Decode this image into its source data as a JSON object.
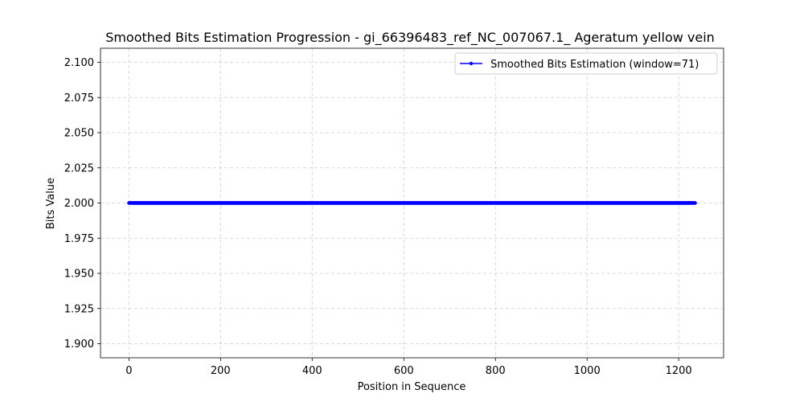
{
  "chart_data": {
    "type": "line",
    "title": "Smoothed Bits Estimation Progression - gi_66396483_ref_NC_007067.1_ Ageratum yellow vein",
    "xlabel": "Position in Sequence",
    "ylabel": "Bits Value",
    "xlim": [
      -62,
      1298
    ],
    "ylim": [
      1.89,
      2.11
    ],
    "x_ticks": [
      0,
      200,
      400,
      600,
      800,
      1000,
      1200
    ],
    "x_tick_labels": [
      "0",
      "200",
      "400",
      "600",
      "800",
      "1000",
      "1200"
    ],
    "y_ticks": [
      1.9,
      1.925,
      1.95,
      1.975,
      2.0,
      2.025,
      2.05,
      2.075,
      2.1
    ],
    "y_tick_labels": [
      "1.900",
      "1.925",
      "1.950",
      "1.975",
      "2.000",
      "2.025",
      "2.050",
      "2.075",
      "2.100"
    ],
    "grid": true,
    "legend_position": "top-right",
    "series": [
      {
        "name": "Smoothed Bits Estimation (window=71)",
        "color": "#0000ff",
        "marker": "point",
        "x_start": 0,
        "x_end": 1236,
        "x_step": 1,
        "constant_y": 2.0
      }
    ]
  }
}
